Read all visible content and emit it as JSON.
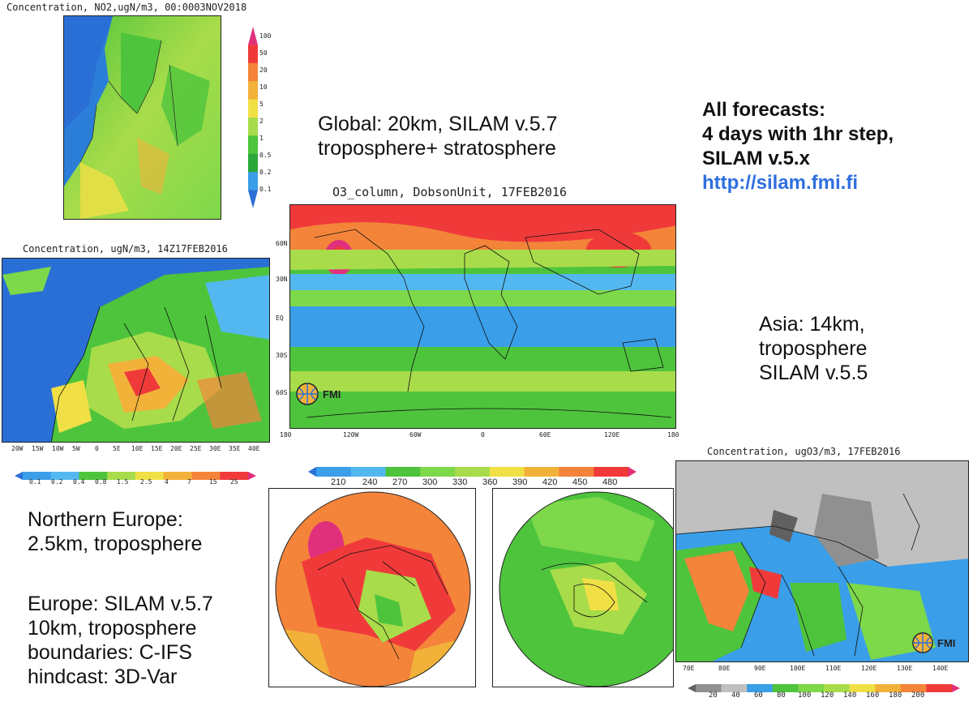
{
  "maps": {
    "north_europe": {
      "title": "Concentration, NO2,ugN/m3, 00:0003NOV2018",
      "colorbar": [
        "100",
        "50",
        "20",
        "10",
        "5",
        "2",
        "1",
        "0.5",
        "0.2",
        "0.1"
      ],
      "colorbar_colors": [
        "#e0307c",
        "#f03a3a",
        "#f3843a",
        "#f2b23a",
        "#f1e045",
        "#a8dc4a",
        "#4ec43c",
        "#2aa83a",
        "#3a9ee8",
        "#2a6fd6"
      ]
    },
    "europe": {
      "title": "Concentration, ugN/m3, 14Z17FEB2016",
      "x_ticks": [
        "20W",
        "15W",
        "10W",
        "5W",
        "0",
        "5E",
        "10E",
        "15E",
        "20E",
        "25E",
        "30E",
        "35E",
        "40E"
      ],
      "colorbar": [
        "0.1",
        "0.2",
        "0.4",
        "0.8",
        "1.5",
        "2.5",
        "4",
        "7",
        "15",
        "25"
      ],
      "colorbar_colors": [
        "#2a6fd6",
        "#3a9ee8",
        "#54b8f0",
        "#4ec43c",
        "#a8dc4a",
        "#f1e045",
        "#f2b23a",
        "#f3843a",
        "#f03a3a",
        "#e0307c"
      ]
    },
    "global": {
      "title": "O3_column, DobsonUnit, 17FEB2016",
      "y_ticks": [
        "60N",
        "30N",
        "EQ",
        "30S",
        "60S"
      ],
      "x_ticks": [
        "180",
        "120W",
        "60W",
        "0",
        "60E",
        "120E",
        "180"
      ],
      "colorbar": [
        "210",
        "240",
        "270",
        "300",
        "330",
        "360",
        "390",
        "420",
        "450",
        "480"
      ],
      "colorbar_colors": [
        "#2a6fd6",
        "#3a9ee8",
        "#54b8f0",
        "#4ec43c",
        "#7dd84a",
        "#a8dc4a",
        "#f1e045",
        "#f2b23a",
        "#f3843a",
        "#f03a3a",
        "#e0307c"
      ]
    },
    "asia": {
      "title": "Concentration, ugO3/m3, 17FEB2016",
      "x_ticks": [
        "70E",
        "80E",
        "90E",
        "100E",
        "110E",
        "120E",
        "130E",
        "140E"
      ],
      "colorbar": [
        "20",
        "40",
        "60",
        "80",
        "100",
        "120",
        "140",
        "160",
        "180",
        "200"
      ],
      "colorbar_colors": [
        "#606060",
        "#909090",
        "#c0c0c0",
        "#3a9ee8",
        "#4ec43c",
        "#7dd84a",
        "#a8dc4a",
        "#f1e045",
        "#f2b23a",
        "#f3843a",
        "#f03a3a",
        "#e0307c"
      ]
    }
  },
  "logo_text": "FMI",
  "text": {
    "global_desc": "Global: 20km, SILAM v.5.7\ntroposphere+ stratosphere",
    "forecasts_line1": "All forecasts:",
    "forecasts_line2": "4 days with 1hr step,",
    "forecasts_line3": "SILAM v.5.x",
    "link": "http://silam.fmi.fi",
    "asia_desc": "Asia: 14km,\ntroposphere\nSILAM v.5.5",
    "ne_desc": "Northern Europe:\n2.5km, troposphere",
    "eu_desc": "Europe: SILAM v.5.7\n10km, troposphere\nboundaries: C-IFS\nhindcast: 3D-Var"
  },
  "colors": {
    "link": "#2f6fe0",
    "land": "#6cc24a",
    "ocean": "#3a8ee8"
  }
}
